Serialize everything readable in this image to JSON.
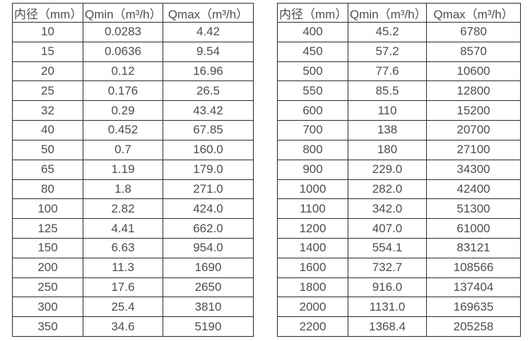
{
  "colors": {
    "background": "#ffffff",
    "border": "#2b2b2b",
    "text": "#4d4d4d"
  },
  "tables": [
    {
      "name": "small-diameter-flow-table",
      "headers": [
        "内径（mm）",
        "Qmin（m³/h）",
        "Qmax（m³/h）"
      ],
      "rows": [
        [
          "10",
          "0.0283",
          "4.42"
        ],
        [
          "15",
          "0.0636",
          "9.54"
        ],
        [
          "20",
          "0.12",
          "16.96"
        ],
        [
          "25",
          "0.176",
          "26.5"
        ],
        [
          "32",
          "0.29",
          "43.42"
        ],
        [
          "40",
          "0.452",
          "67.85"
        ],
        [
          "50",
          "0.7",
          "160.0"
        ],
        [
          "65",
          "1.19",
          "179.0"
        ],
        [
          "80",
          "1.8",
          "271.0"
        ],
        [
          "100",
          "2.82",
          "424.0"
        ],
        [
          "125",
          "4.41",
          "662.0"
        ],
        [
          "150",
          "6.63",
          "954.0"
        ],
        [
          "200",
          "11.3",
          "1690"
        ],
        [
          "250",
          "17.6",
          "2650"
        ],
        [
          "300",
          "25.4",
          "3810"
        ],
        [
          "350",
          "34.6",
          "5190"
        ]
      ]
    },
    {
      "name": "large-diameter-flow-table",
      "headers": [
        "内径（mm）",
        "Qmin（m³/h）",
        "Qmax（m³/h）"
      ],
      "rows": [
        [
          "400",
          "45.2",
          "6780"
        ],
        [
          "450",
          "57.2",
          "8570"
        ],
        [
          "500",
          "77.6",
          "10600"
        ],
        [
          "550",
          "85.5",
          "12800"
        ],
        [
          "600",
          "110",
          "15200"
        ],
        [
          "700",
          "138",
          "20700"
        ],
        [
          "800",
          "180",
          "27100"
        ],
        [
          "900",
          "229.0",
          "34300"
        ],
        [
          "1000",
          "282.0",
          "42400"
        ],
        [
          "1100",
          "342.0",
          "51300"
        ],
        [
          "1200",
          "407.0",
          "61000"
        ],
        [
          "1400",
          "554.1",
          "83121"
        ],
        [
          "1600",
          "732.7",
          "108566"
        ],
        [
          "1800",
          "916.0",
          "137404"
        ],
        [
          "2000",
          "1131.0",
          "169635"
        ],
        [
          "2200",
          "1368.4",
          "205258"
        ]
      ]
    }
  ]
}
